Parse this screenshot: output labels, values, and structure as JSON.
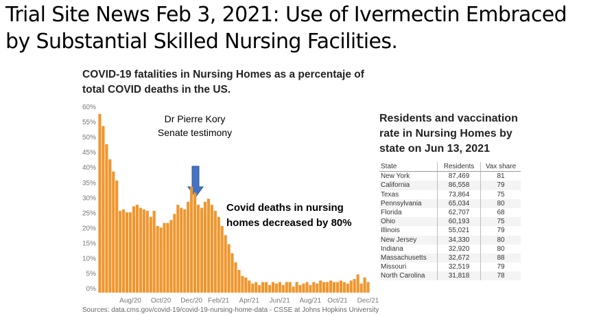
{
  "title": "Trial Site News Feb 3, 2021: Use of Ivermectin Embraced by Substantial Skilled Nursing Facilities.",
  "chart_data": {
    "type": "bar",
    "title": "COVID-19 fatalities in Nursing Homes as a percentaje of total COVID deaths in the US.",
    "color": "#f0962e",
    "categories": [
      null,
      null,
      null,
      null,
      null,
      null,
      null,
      null,
      null,
      "Aug/20",
      null,
      null,
      null,
      null,
      null,
      null,
      null,
      null,
      "Oct/20",
      null,
      null,
      null,
      null,
      null,
      null,
      null,
      null,
      "Dec/20",
      null,
      null,
      null,
      null,
      null,
      null,
      null,
      "Feb/21",
      null,
      null,
      null,
      null,
      null,
      null,
      null,
      null,
      "Apr/21",
      null,
      null,
      null,
      null,
      null,
      null,
      null,
      null,
      "Jun/21",
      null,
      null,
      null,
      null,
      null,
      null,
      null,
      null,
      "Aug/21",
      null,
      null,
      null,
      null,
      null,
      null,
      null,
      "Oct/21",
      null,
      null,
      null,
      null,
      null,
      null,
      null,
      null,
      "Dec/21"
    ],
    "values": [
      59,
      55,
      49,
      44,
      40,
      37,
      27,
      27.5,
      26.5,
      26.5,
      28.5,
      29,
      28,
      27.5,
      27,
      25,
      27,
      22,
      21.5,
      23,
      23,
      24,
      26,
      29,
      28,
      27.5,
      30,
      35,
      33,
      29,
      28,
      30,
      31,
      29,
      27,
      25,
      22,
      19,
      16,
      13,
      10,
      7.5,
      5.5,
      5,
      4,
      3,
      3.5,
      2.5,
      3.5,
      3.5,
      2.5,
      3.5,
      3,
      3.5,
      2.5,
      3.5,
      3.5,
      2,
      3.5,
      2.5,
      3,
      3.5,
      2.5,
      3.5,
      3,
      4,
      3.5,
      3.5,
      4,
      3.5,
      3.5,
      4,
      3.5,
      3,
      4,
      4.5,
      6,
      3,
      5,
      3.5
    ],
    "ylim": [
      0,
      61
    ],
    "yticks": [
      {
        "value": 0,
        "label": "0%"
      },
      {
        "value": 5,
        "label": "5%"
      },
      {
        "value": 10,
        "label": "10%"
      },
      {
        "value": 15,
        "label": "15%"
      },
      {
        "value": 20,
        "label": "20%"
      },
      {
        "value": 25,
        "label": "25%"
      },
      {
        "value": 30,
        "label": "30%"
      },
      {
        "value": 35,
        "label": "35%"
      },
      {
        "value": 40,
        "label": "40%"
      },
      {
        "value": 45,
        "label": "45%"
      },
      {
        "value": 50,
        "label": "50%"
      },
      {
        "value": 55,
        "label": "55%"
      },
      {
        "value": 60,
        "label": "60%"
      }
    ],
    "annotations": [
      "Dr Pierre Kory Senate testimony",
      "Covid deaths in nursing homes decreased by 80%"
    ],
    "source": "Sources: data.cms.gov/covid-19/covid-19-nursing-home-data - CSSE at Johns Hopkins University"
  },
  "table": {
    "title": "Residents and vaccination rate in Nursing Homes by state on Jun 13, 2021",
    "columns": [
      "State",
      "Residents",
      "Vax share"
    ],
    "rows": [
      [
        "New York",
        "87,469",
        81
      ],
      [
        "California",
        "86,558",
        79
      ],
      [
        "Texas",
        "73,864",
        75
      ],
      [
        "Pennsylvania",
        "65,034",
        80
      ],
      [
        "Florida",
        "62,707",
        68
      ],
      [
        "Ohio",
        "60,193",
        75
      ],
      [
        "Illinois",
        "55,021",
        79
      ],
      [
        "New Jersey",
        "34,330",
        80
      ],
      [
        "Indiana",
        "32,920",
        80
      ],
      [
        "Massachusetts",
        "32,672",
        88
      ],
      [
        "Missouri",
        "32,519",
        79
      ],
      [
        "North Carolina",
        "31,818",
        78
      ]
    ]
  }
}
